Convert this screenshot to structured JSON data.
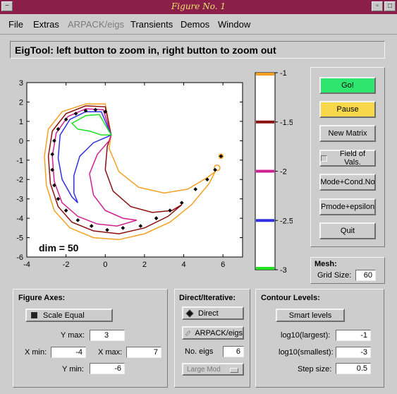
{
  "window": {
    "title": "Figure No. 1"
  },
  "menu": [
    {
      "label": "File",
      "enabled": true
    },
    {
      "label": "Extras",
      "enabled": true
    },
    {
      "label": "ARPACK/eigs",
      "enabled": false
    },
    {
      "label": "Transients",
      "enabled": true
    },
    {
      "label": "Demos",
      "enabled": true
    },
    {
      "label": "Window",
      "enabled": true
    }
  ],
  "status_message": "EigTool: left button to zoom in, right button to zoom out",
  "plot": {
    "annotation": "dim = 50",
    "x_ticks": [
      "-4",
      "-2",
      "0",
      "2",
      "4",
      "6"
    ],
    "y_ticks": [
      "3",
      "2",
      "1",
      "0",
      "-1",
      "-2",
      "-3",
      "-4",
      "-5",
      "-6"
    ]
  },
  "chart_data": {
    "type": "contour",
    "xlim": [
      -4,
      7
    ],
    "ylim": [
      -6,
      3
    ],
    "annotation": "dim = 50",
    "contour_levels_log10_epsilon": [
      -1,
      -1.5,
      -2,
      -2.5,
      -3
    ],
    "contour_colors": {
      "-1": "#f5a021",
      "-1.5": "#8b1010",
      "-2": "#d0208f",
      "-2.5": "#3030e0",
      "-3": "#20e020"
    },
    "eigenvalues_approx": [
      {
        "x": 0.0,
        "y": 1.5
      },
      {
        "x": -0.5,
        "y": 1.6
      },
      {
        "x": -1.0,
        "y": 1.55
      },
      {
        "x": -1.5,
        "y": 1.4
      },
      {
        "x": -2.0,
        "y": 1.1
      },
      {
        "x": -2.4,
        "y": 0.6
      },
      {
        "x": -2.6,
        "y": 0.0
      },
      {
        "x": -2.7,
        "y": -0.7
      },
      {
        "x": -2.7,
        "y": -1.5
      },
      {
        "x": -2.6,
        "y": -2.3
      },
      {
        "x": -2.4,
        "y": -3.0
      },
      {
        "x": -2.0,
        "y": -3.6
      },
      {
        "x": -1.4,
        "y": -4.1
      },
      {
        "x": -0.7,
        "y": -4.4
      },
      {
        "x": 0.1,
        "y": -4.6
      },
      {
        "x": 0.9,
        "y": -4.5
      },
      {
        "x": 1.8,
        "y": -4.4
      },
      {
        "x": 2.6,
        "y": -4.0
      },
      {
        "x": 3.3,
        "y": -3.6
      },
      {
        "x": 3.9,
        "y": -3.2
      },
      {
        "x": 4.6,
        "y": -2.5
      },
      {
        "x": 5.2,
        "y": -2.0
      },
      {
        "x": 5.6,
        "y": -1.5
      },
      {
        "x": 5.9,
        "y": -0.8
      }
    ]
  },
  "colorbar": {
    "labels": [
      "-1",
      "-1.5",
      "-2",
      "-2.5",
      "-3"
    ],
    "colors": [
      "#f5a021",
      "#8b1010",
      "#d0208f",
      "#3030e0",
      "#20e020"
    ]
  },
  "buttons": {
    "go": "Go!",
    "pause": "Pause",
    "new_matrix": "New Matrix",
    "field_of_vals": "Field of Vals.",
    "mode_cond": "Mode+Cond.No",
    "pmode": "Pmode+epsilon",
    "quit": "Quit"
  },
  "colors": {
    "go": "#2ee66e",
    "pause": "#f6d84a"
  },
  "mesh": {
    "title": "Mesh:",
    "grid_size_label": "Grid Size:",
    "grid_size": "60"
  },
  "figure_axes": {
    "title": "Figure Axes:",
    "scale_equal": "Scale Equal",
    "ymax_label": "Y max:",
    "ymax": "3",
    "xmin_label": "X min:",
    "xmin": "-4",
    "xmax_label": "X max:",
    "xmax": "7",
    "ymin_label": "Y min:",
    "ymin": "-6"
  },
  "direct_iterative": {
    "title": "Direct/Iterative:",
    "direct": "Direct",
    "arpack": "ARPACK/eigs",
    "no_eigs_label": "No. eigs",
    "no_eigs": "6",
    "which": "Large Mod"
  },
  "contour_levels": {
    "title": "Contour Levels:",
    "smart": "Smart levels",
    "largest_label": "log10(largest):",
    "largest": "-1",
    "smallest_label": "log10(smallest):",
    "smallest": "-3",
    "step_label": "Step size:",
    "step": "0.5"
  }
}
